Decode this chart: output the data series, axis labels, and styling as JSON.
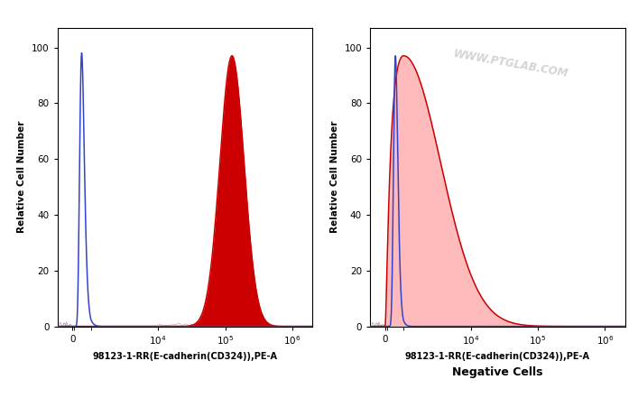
{
  "fig_width": 7.07,
  "fig_height": 4.41,
  "dpi": 100,
  "bg_color": "#ffffff",
  "subplot1": {
    "xlabel": "98123-1-RR(E-cadherin(CD324)),PE-A",
    "ylabel": "Relative Cell Number",
    "ylim": [
      0,
      107
    ],
    "yticks": [
      0,
      20,
      40,
      60,
      80,
      100
    ],
    "blue_peak_log10": 2.7,
    "blue_sigma_log10": 0.11,
    "blue_height": 98,
    "red_peak_log10": 5.1,
    "red_sigma_log10": 0.18,
    "red_height": 97,
    "blue_color": "#3344cc",
    "red_color": "#cc0000",
    "red_fill_color": "#cc0000",
    "red_fill_alpha": 1.0,
    "blue_fill_alpha": 0.0,
    "linthresh": 1000,
    "linscale": 0.25,
    "xtick_vals": [
      0,
      10000,
      100000,
      1000000
    ],
    "xtick_labels": [
      "0",
      "10$^4$",
      "10$^5$",
      "10$^6$"
    ],
    "xlim_left": -800,
    "xlim_right": 2000000
  },
  "subplot2": {
    "xlabel": "98123-1-RR(E-cadherin(CD324)),PE-A",
    "ylabel": "Relative Cell Number",
    "ylim": [
      0,
      107
    ],
    "yticks": [
      0,
      20,
      40,
      60,
      80,
      100
    ],
    "blue_peak_log10": 2.75,
    "blue_sigma_log10": 0.09,
    "blue_height": 97,
    "red_peak_log10": 3.0,
    "red_sigma_log10": 0.55,
    "red_height": 97,
    "blue_color": "#3344cc",
    "red_color": "#cc0000",
    "red_fill_color": "#ffb0b0",
    "red_fill_alpha": 0.85,
    "blue_fill_alpha": 0.0,
    "linthresh": 1000,
    "linscale": 0.25,
    "xtick_vals": [
      0,
      10000,
      100000,
      1000000
    ],
    "xtick_labels": [
      "0",
      "10$^4$",
      "10$^5$",
      "10$^6$"
    ],
    "xlim_left": -800,
    "xlim_right": 2000000,
    "caption": "Negative Cells"
  },
  "watermark": "WWW.PTGLAB.COM"
}
